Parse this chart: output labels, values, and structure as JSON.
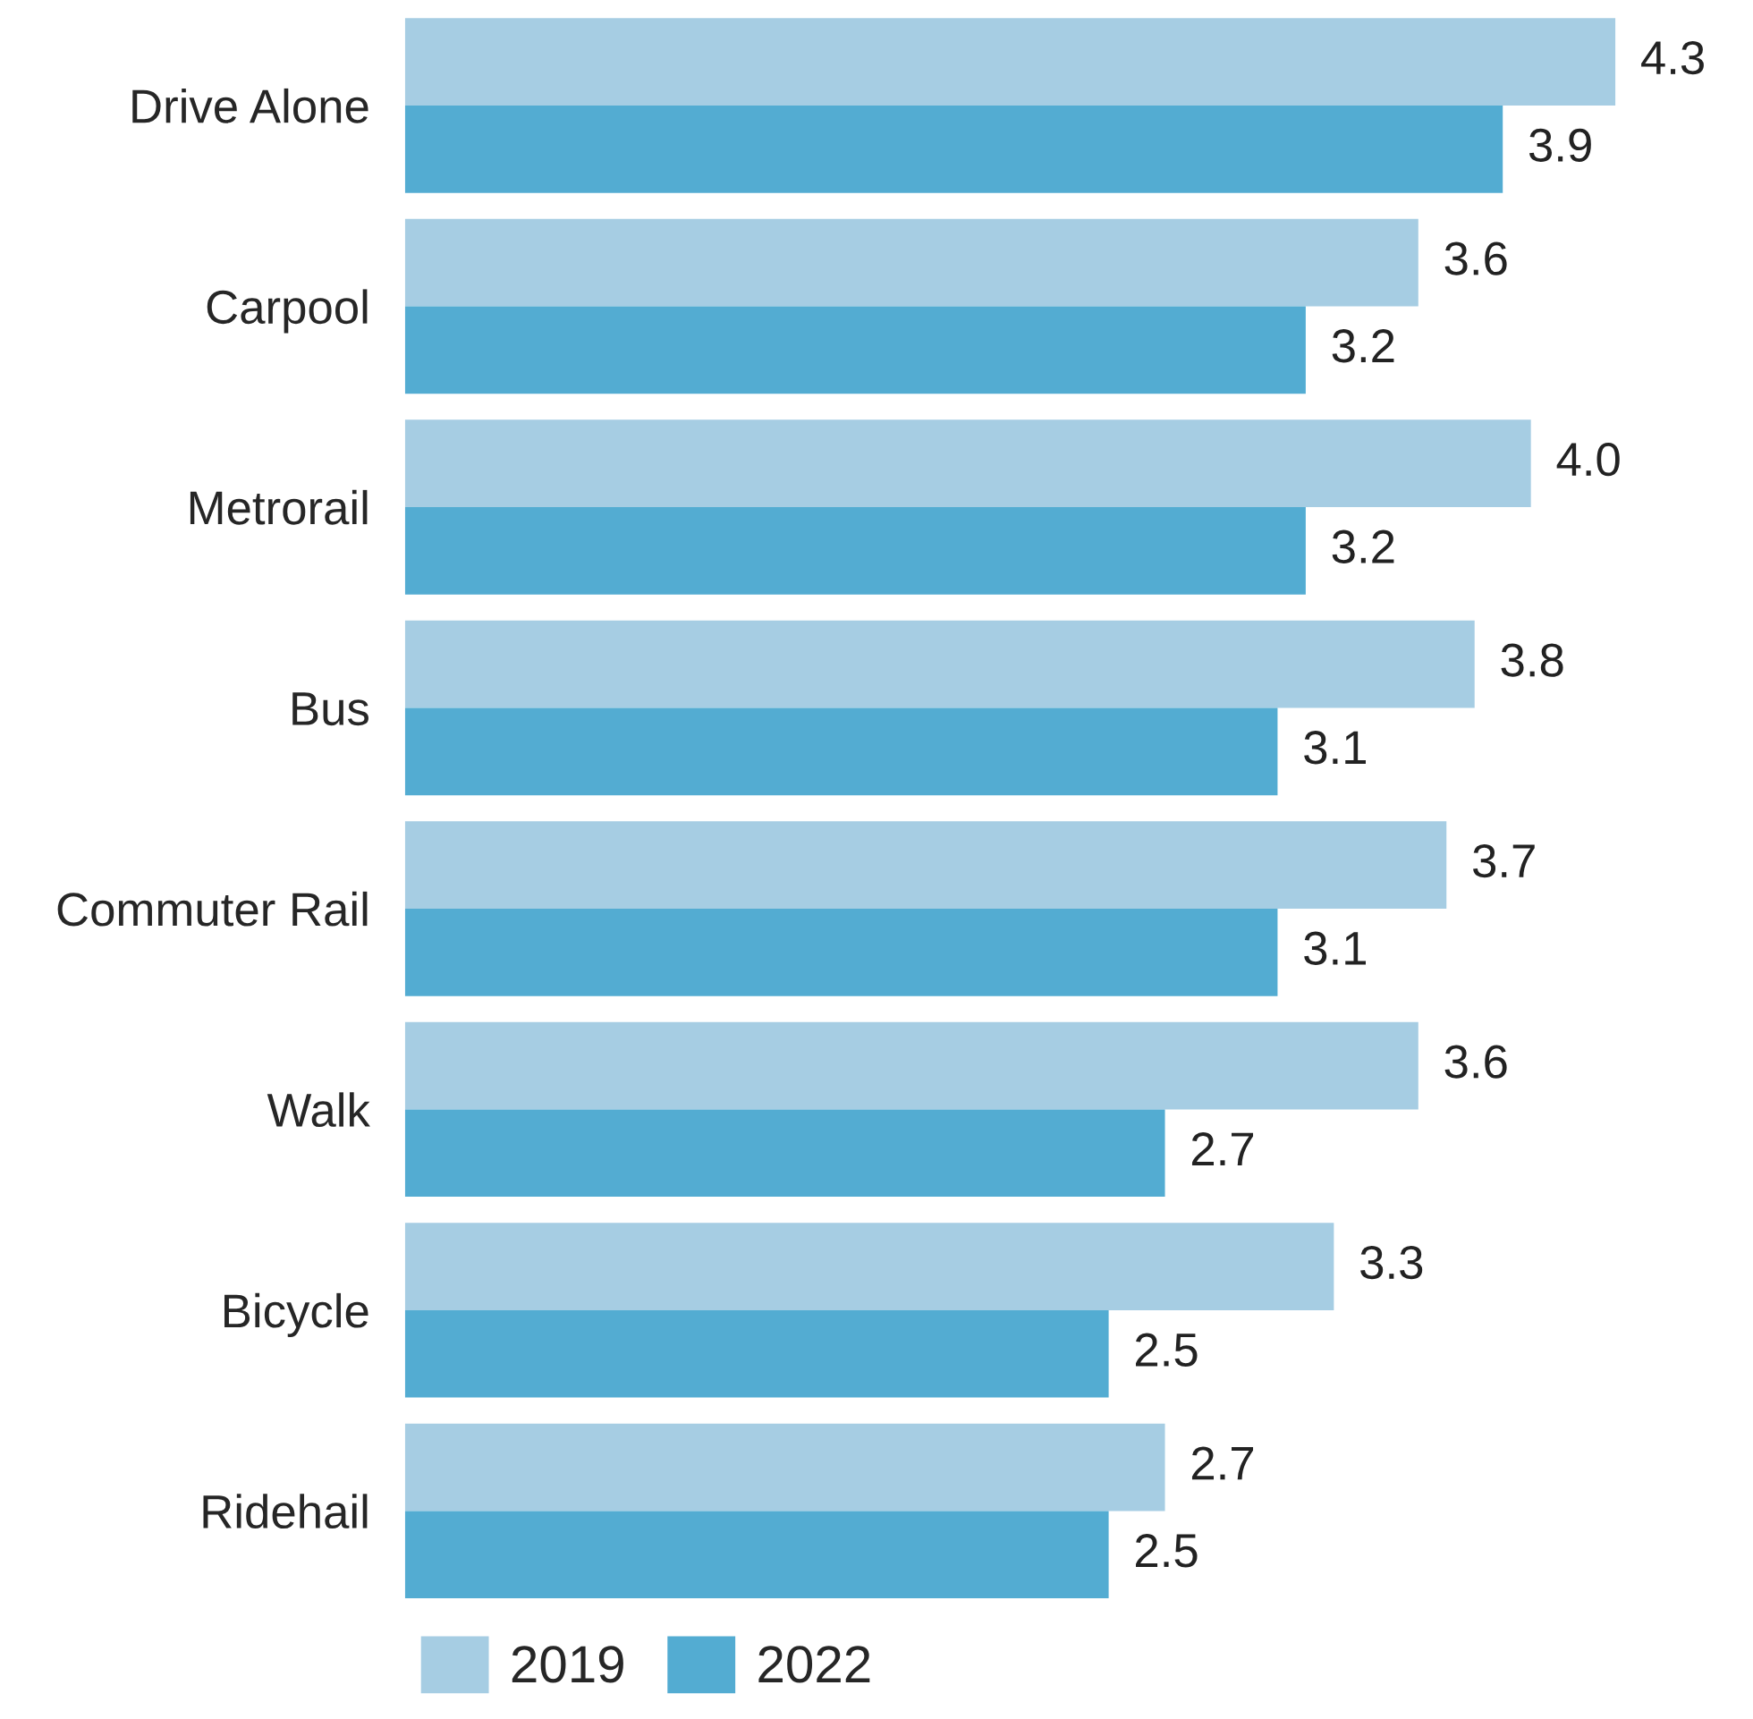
{
  "chart_data": {
    "type": "bar",
    "orientation": "horizontal",
    "categories": [
      "Drive Alone",
      "Carpool",
      "Metrorail",
      "Bus",
      "Commuter Rail",
      "Walk",
      "Bicycle",
      "Ridehail"
    ],
    "series": [
      {
        "name": "2019",
        "color": "#a6cde3",
        "values": [
          4.3,
          3.6,
          4.0,
          3.8,
          3.7,
          3.6,
          3.3,
          2.7
        ],
        "value_labels": [
          "4.3",
          "3.6",
          "4.0",
          "3.8",
          "3.7",
          "3.6",
          "3.3",
          "2.7"
        ]
      },
      {
        "name": "2022",
        "color": "#53acd2",
        "values": [
          3.9,
          3.2,
          3.2,
          3.1,
          3.1,
          2.7,
          2.5,
          2.5
        ],
        "value_labels": [
          "3.9",
          "3.2",
          "3.2",
          "3.1",
          "3.1",
          "2.7",
          "2.5",
          "2.5"
        ]
      }
    ],
    "tick_labels": "y",
    "legend": "bottom left",
    "grid": false
  }
}
